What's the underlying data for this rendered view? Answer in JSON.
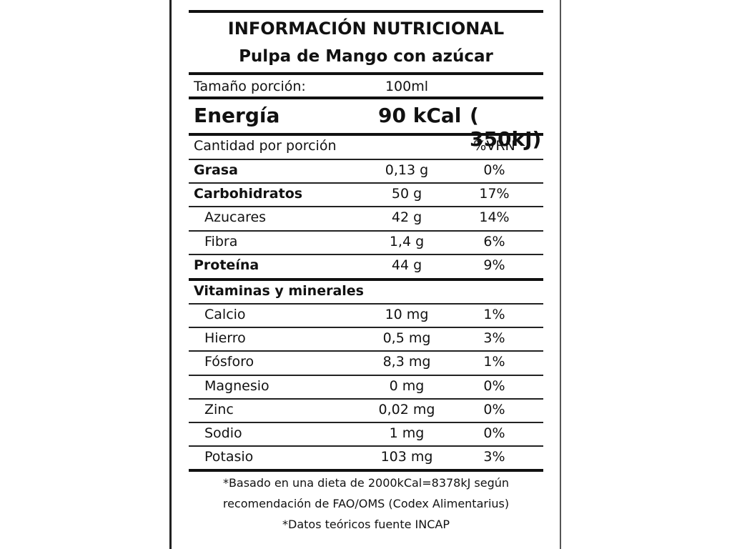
{
  "title": "INFORMACIÓN NUTRICIONAL",
  "subtitle": "Pulpa de Mango con azúcar",
  "serving": {
    "label": "Tamaño porción:",
    "value": "100ml"
  },
  "energy": {
    "label": "Energía",
    "kcal": "90 kCal",
    "kj": "( 350kJ)"
  },
  "header": {
    "label": "Cantidad por porción",
    "pct": "%VRN"
  },
  "macros": [
    {
      "name": "Grasa",
      "amount": "0,13 g",
      "pct": "0%"
    },
    {
      "name": "Carbohidratos",
      "amount": "50 g",
      "pct": "17%"
    },
    {
      "name": "Azucares",
      "amount": "42 g",
      "pct": "14%"
    },
    {
      "name": "Fibra",
      "amount": "1,4 g",
      "pct": "6%"
    },
    {
      "name": "Proteína",
      "amount": "44 g",
      "pct": "9%"
    }
  ],
  "vitamins_title": "Vitaminas y minerales",
  "minerals": [
    {
      "name": "Calcio",
      "amount": "10 mg",
      "pct": "1%"
    },
    {
      "name": "Hierro",
      "amount": "0,5 mg",
      "pct": "3%"
    },
    {
      "name": "Fósforo",
      "amount": "8,3 mg",
      "pct": "1%"
    },
    {
      "name": "Magnesio",
      "amount": "0 mg",
      "pct": "0%"
    },
    {
      "name": "Zinc",
      "amount": "0,02 mg",
      "pct": "0%"
    },
    {
      "name": "Sodio",
      "amount": "1 mg",
      "pct": "0%"
    },
    {
      "name": "Potasio",
      "amount": "103 mg",
      "pct": "3%"
    }
  ],
  "footnotes": [
    "*Basado en una dieta de 2000kCal=8378kJ según",
    "recomendación de FAO/OMS (Codex Alimentarius)",
    "*Datos teóricos fuente INCAP"
  ]
}
